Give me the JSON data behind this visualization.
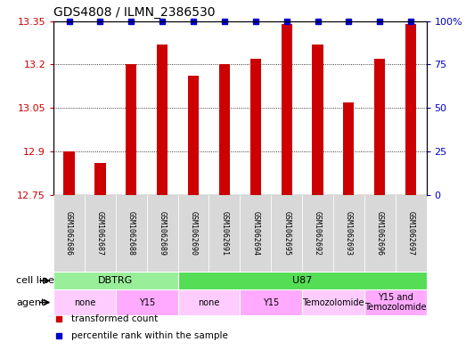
{
  "title": "GDS4808 / ILMN_2386530",
  "samples": [
    "GSM1062686",
    "GSM1062687",
    "GSM1062688",
    "GSM1062689",
    "GSM1062690",
    "GSM1062691",
    "GSM1062694",
    "GSM1062695",
    "GSM1062692",
    "GSM1062693",
    "GSM1062696",
    "GSM1062697"
  ],
  "values": [
    12.9,
    12.86,
    13.2,
    13.27,
    13.16,
    13.2,
    13.22,
    13.34,
    13.27,
    13.07,
    13.22,
    13.34
  ],
  "ylim_left": [
    12.75,
    13.35
  ],
  "ylim_right": [
    0,
    100
  ],
  "yticks_left": [
    12.75,
    12.9,
    13.05,
    13.2,
    13.35
  ],
  "yticks_right": [
    0,
    25,
    50,
    75,
    100
  ],
  "ytick_labels_left": [
    "12.75",
    "12.9",
    "13.05",
    "13.2",
    "13.35"
  ],
  "ytick_labels_right": [
    "0",
    "25",
    "50",
    "75",
    "100%"
  ],
  "bar_color": "#cc0000",
  "dot_color": "#0000cc",
  "left_tick_color": "#cc0000",
  "right_tick_color": "#0000cc",
  "cell_line_groups": [
    {
      "label": "DBTRG",
      "start": 0,
      "end": 4,
      "color": "#99ee99"
    },
    {
      "label": "U87",
      "start": 4,
      "end": 12,
      "color": "#55dd55"
    }
  ],
  "agent_groups": [
    {
      "label": "none",
      "start": 0,
      "end": 2,
      "color": "#ffccff"
    },
    {
      "label": "Y15",
      "start": 2,
      "end": 4,
      "color": "#ffaaff"
    },
    {
      "label": "none",
      "start": 4,
      "end": 6,
      "color": "#ffccff"
    },
    {
      "label": "Y15",
      "start": 6,
      "end": 8,
      "color": "#ffaaff"
    },
    {
      "label": "Temozolomide",
      "start": 8,
      "end": 10,
      "color": "#ffccff"
    },
    {
      "label": "Y15 and\nTemozolomide",
      "start": 10,
      "end": 12,
      "color": "#ffaaff"
    }
  ],
  "cell_line_label": "cell line",
  "agent_label": "agent",
  "legend_items": [
    {
      "color": "#cc0000",
      "marker": "s",
      "label": "transformed count"
    },
    {
      "color": "#0000cc",
      "marker": "s",
      "label": "percentile rank within the sample"
    }
  ],
  "bar_width": 0.35,
  "sample_label_fontsize": 6.0,
  "title_fontsize": 10,
  "tick_fontsize": 8,
  "group_fontsize": 8,
  "legend_fontsize": 7.5
}
